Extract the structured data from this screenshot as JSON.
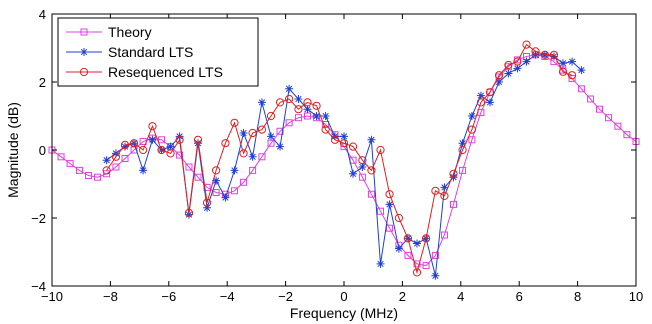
{
  "chart_data": {
    "type": "line",
    "xlabel": "Frequency (MHz)",
    "ylabel": "Magnitude (dB)",
    "xlim": [
      -10,
      10
    ],
    "ylim": [
      -4,
      4
    ],
    "xticks": [
      -10,
      -8,
      -6,
      -4,
      -2,
      0,
      2,
      4,
      6,
      8,
      10
    ],
    "yticks": [
      -4,
      -2,
      0,
      2,
      4
    ],
    "xtick_labels": [
      "−10",
      "−8",
      "−6",
      "−4",
      "−2",
      "0",
      "2",
      "4",
      "6",
      "8",
      "10"
    ],
    "ytick_labels": [
      "−4",
      "−2",
      "0",
      "2",
      "4"
    ],
    "grid": false,
    "legend_position": "top-left",
    "series": [
      {
        "name": "Theory",
        "color": "#e040e0",
        "marker": "square",
        "points": [
          [
            -10.0,
            0.0
          ],
          [
            -9.69,
            -0.2
          ],
          [
            -9.38,
            -0.4
          ],
          [
            -9.06,
            -0.6
          ],
          [
            -8.75,
            -0.75
          ],
          [
            -8.44,
            -0.8
          ],
          [
            -8.13,
            -0.7
          ],
          [
            -7.81,
            -0.5
          ],
          [
            -7.5,
            -0.25
          ],
          [
            -7.19,
            0.0
          ],
          [
            -6.88,
            0.25
          ],
          [
            -6.56,
            0.35
          ],
          [
            -6.25,
            0.3
          ],
          [
            -5.94,
            0.1
          ],
          [
            -5.63,
            -0.15
          ],
          [
            -5.31,
            -0.5
          ],
          [
            -5.0,
            -0.8
          ],
          [
            -4.69,
            -1.1
          ],
          [
            -4.38,
            -1.25
          ],
          [
            -4.06,
            -1.3
          ],
          [
            -3.75,
            -1.2
          ],
          [
            -3.44,
            -0.95
          ],
          [
            -3.13,
            -0.6
          ],
          [
            -2.81,
            -0.2
          ],
          [
            -2.5,
            0.2
          ],
          [
            -2.19,
            0.55
          ],
          [
            -1.88,
            0.8
          ],
          [
            -1.56,
            0.95
          ],
          [
            -1.25,
            1.0
          ],
          [
            -0.94,
            0.95
          ],
          [
            -0.63,
            0.75
          ],
          [
            -0.31,
            0.45
          ],
          [
            0.0,
            0.1
          ],
          [
            0.31,
            -0.3
          ],
          [
            0.63,
            -0.8
          ],
          [
            0.94,
            -1.3
          ],
          [
            1.25,
            -1.8
          ],
          [
            1.56,
            -2.3
          ],
          [
            1.88,
            -2.8
          ],
          [
            2.19,
            -3.1
          ],
          [
            2.5,
            -3.35
          ],
          [
            2.81,
            -3.4
          ],
          [
            3.13,
            -3.1
          ],
          [
            3.44,
            -2.5
          ],
          [
            3.75,
            -1.6
          ],
          [
            4.06,
            -0.6
          ],
          [
            4.38,
            0.3
          ],
          [
            4.69,
            1.1
          ],
          [
            5.0,
            1.7
          ],
          [
            5.31,
            2.15
          ],
          [
            5.63,
            2.45
          ],
          [
            5.94,
            2.65
          ],
          [
            6.25,
            2.75
          ],
          [
            6.56,
            2.8
          ],
          [
            6.88,
            2.75
          ],
          [
            7.19,
            2.6
          ],
          [
            7.5,
            2.35
          ],
          [
            7.81,
            2.1
          ],
          [
            8.13,
            1.8
          ],
          [
            8.44,
            1.5
          ],
          [
            8.75,
            1.2
          ],
          [
            9.06,
            0.95
          ],
          [
            9.38,
            0.7
          ],
          [
            9.69,
            0.45
          ],
          [
            10.0,
            0.25
          ]
        ]
      },
      {
        "name": "Standard LTS",
        "color": "#1f3fd0",
        "marker": "asterisk",
        "points": [
          [
            -8.13,
            -0.3
          ],
          [
            -7.81,
            -0.1
          ],
          [
            -7.5,
            0.1
          ],
          [
            -7.19,
            0.2
          ],
          [
            -6.88,
            -0.6
          ],
          [
            -6.56,
            0.3
          ],
          [
            -6.25,
            0.0
          ],
          [
            -5.94,
            0.1
          ],
          [
            -5.63,
            0.4
          ],
          [
            -5.31,
            -1.9
          ],
          [
            -5.0,
            0.2
          ],
          [
            -4.69,
            -1.7
          ],
          [
            -4.38,
            -0.9
          ],
          [
            -4.06,
            -1.4
          ],
          [
            -3.75,
            -0.6
          ],
          [
            -3.44,
            0.5
          ],
          [
            -3.13,
            -0.2
          ],
          [
            -2.81,
            1.4
          ],
          [
            -2.5,
            0.4
          ],
          [
            -2.19,
            0.1
          ],
          [
            -1.88,
            1.8
          ],
          [
            -1.56,
            1.5
          ],
          [
            -1.25,
            1.2
          ],
          [
            -0.94,
            1.0
          ],
          [
            -0.63,
            1.0
          ],
          [
            -0.31,
            0.4
          ],
          [
            0.0,
            0.4
          ],
          [
            0.31,
            -0.7
          ],
          [
            0.63,
            -0.5
          ],
          [
            0.94,
            0.3
          ],
          [
            1.25,
            -3.35
          ],
          [
            1.56,
            -1.6
          ],
          [
            1.88,
            -2.9
          ],
          [
            2.19,
            -2.6
          ],
          [
            2.5,
            -2.75
          ],
          [
            2.81,
            -2.6
          ],
          [
            3.13,
            -3.7
          ],
          [
            3.44,
            -1.1
          ],
          [
            3.75,
            -0.8
          ],
          [
            4.06,
            0.2
          ],
          [
            4.38,
            1.0
          ],
          [
            4.69,
            1.6
          ],
          [
            5.0,
            1.4
          ],
          [
            5.31,
            2.0
          ],
          [
            5.63,
            2.25
          ],
          [
            5.94,
            2.4
          ],
          [
            6.25,
            2.6
          ],
          [
            6.56,
            2.8
          ],
          [
            6.88,
            2.8
          ],
          [
            7.19,
            2.75
          ],
          [
            7.5,
            2.55
          ],
          [
            7.81,
            2.6
          ],
          [
            8.13,
            2.35
          ]
        ]
      },
      {
        "name": "Resequenced LTS",
        "color": "#e02020",
        "marker": "circle",
        "points": [
          [
            -8.13,
            -0.6
          ],
          [
            -7.81,
            -0.2
          ],
          [
            -7.5,
            0.15
          ],
          [
            -7.19,
            0.2
          ],
          [
            -6.88,
            0.0
          ],
          [
            -6.56,
            0.7
          ],
          [
            -6.25,
            0.0
          ],
          [
            -5.94,
            -0.1
          ],
          [
            -5.63,
            0.3
          ],
          [
            -5.31,
            -1.85
          ],
          [
            -5.0,
            0.3
          ],
          [
            -4.69,
            -1.55
          ],
          [
            -4.38,
            -0.6
          ],
          [
            -4.06,
            0.2
          ],
          [
            -3.75,
            0.8
          ],
          [
            -3.44,
            -0.1
          ],
          [
            -3.13,
            0.5
          ],
          [
            -2.81,
            0.6
          ],
          [
            -2.5,
            1.0
          ],
          [
            -2.19,
            1.4
          ],
          [
            -1.88,
            1.5
          ],
          [
            -1.56,
            1.2
          ],
          [
            -1.25,
            1.4
          ],
          [
            -0.94,
            1.3
          ],
          [
            -0.63,
            0.6
          ],
          [
            -0.31,
            0.3
          ],
          [
            0.0,
            0.2
          ],
          [
            0.31,
            0.1
          ],
          [
            0.63,
            -0.3
          ],
          [
            0.94,
            -0.6
          ],
          [
            1.25,
            0.0
          ],
          [
            1.56,
            -1.3
          ],
          [
            1.88,
            -2.0
          ],
          [
            2.19,
            -2.6
          ],
          [
            2.5,
            -3.6
          ],
          [
            2.81,
            -2.6
          ],
          [
            3.13,
            -1.2
          ],
          [
            3.44,
            -1.35
          ],
          [
            3.75,
            -0.7
          ],
          [
            4.06,
            0.0
          ],
          [
            4.38,
            0.6
          ],
          [
            4.69,
            1.4
          ],
          [
            5.0,
            1.7
          ],
          [
            5.31,
            2.2
          ],
          [
            5.63,
            2.5
          ],
          [
            5.94,
            2.6
          ],
          [
            6.25,
            3.1
          ],
          [
            6.56,
            2.9
          ],
          [
            6.88,
            2.8
          ],
          [
            7.19,
            2.8
          ],
          [
            7.5,
            2.3
          ],
          [
            7.81,
            2.2
          ]
        ]
      }
    ]
  }
}
